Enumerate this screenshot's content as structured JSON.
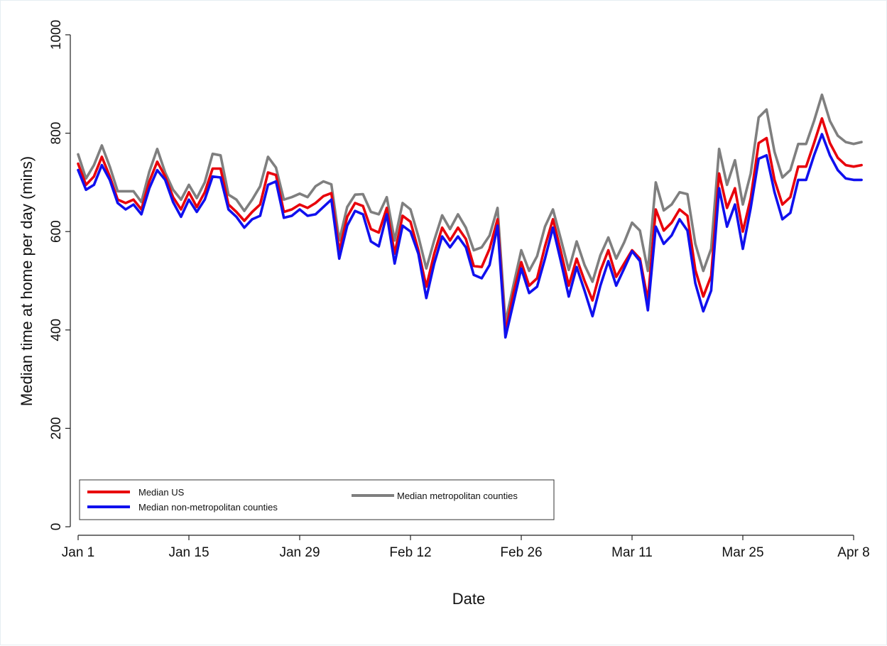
{
  "chart_data": {
    "type": "line",
    "title": "",
    "xlabel": "Date",
    "ylabel": "Median time at home per day (mins)",
    "x_start": "Jan 1",
    "x_ticks": [
      {
        "label": "Jan 1",
        "day": 0
      },
      {
        "label": "Jan 15",
        "day": 14
      },
      {
        "label": "Jan 29",
        "day": 28
      },
      {
        "label": "Feb 12",
        "day": 42
      },
      {
        "label": "Feb 26",
        "day": 56
      },
      {
        "label": "Mar 11",
        "day": 70
      },
      {
        "label": "Mar 25",
        "day": 84
      },
      {
        "label": "Apr 8",
        "day": 98
      }
    ],
    "y_ticks": [
      0,
      200,
      400,
      600,
      800,
      1000
    ],
    "ylim": [
      0,
      1000
    ],
    "xlim_days": [
      0,
      98
    ],
    "grid": false,
    "legend_position": "bottom-left",
    "series": [
      {
        "name": "Median US",
        "color": "#e8000b",
        "values": [
          738,
          695,
          712,
          752,
          712,
          665,
          658,
          665,
          645,
          702,
          742,
          712,
          670,
          645,
          680,
          650,
          680,
          728,
          728,
          655,
          640,
          622,
          640,
          655,
          720,
          715,
          640,
          645,
          655,
          648,
          658,
          672,
          678,
          560,
          630,
          658,
          652,
          605,
          598,
          648,
          555,
          632,
          620,
          562,
          488,
          555,
          608,
          582,
          608,
          585,
          530,
          528,
          565,
          625,
          395,
          475,
          538,
          490,
          505,
          570,
          625,
          560,
          490,
          545,
          500,
          460,
          520,
          562,
          508,
          535,
          562,
          545,
          460,
          645,
          602,
          618,
          645,
          632,
          522,
          468,
          510,
          718,
          648,
          688,
          600,
          668,
          780,
          790,
          705,
          655,
          670,
          732,
          732,
          780,
          830,
          780,
          750,
          735,
          732,
          735
        ]
      },
      {
        "name": "Median non-metropolitan counties",
        "color": "#1010ee",
        "values": [
          725,
          685,
          695,
          735,
          705,
          658,
          645,
          655,
          635,
          688,
          725,
          705,
          660,
          630,
          665,
          640,
          665,
          712,
          710,
          645,
          630,
          608,
          625,
          632,
          695,
          702,
          628,
          632,
          645,
          632,
          635,
          650,
          665,
          545,
          612,
          642,
          635,
          580,
          570,
          635,
          535,
          612,
          600,
          555,
          465,
          535,
          590,
          568,
          590,
          568,
          512,
          505,
          532,
          612,
          385,
          455,
          525,
          475,
          488,
          545,
          608,
          540,
          468,
          528,
          480,
          428,
          490,
          540,
          490,
          525,
          560,
          540,
          440,
          610,
          575,
          592,
          625,
          602,
          495,
          438,
          480,
          688,
          610,
          655,
          565,
          648,
          748,
          755,
          680,
          625,
          638,
          705,
          705,
          755,
          798,
          755,
          725,
          708,
          705,
          705
        ]
      },
      {
        "name": "Median metropolitan counties",
        "color": "#7f7f7f",
        "values": [
          757,
          708,
          735,
          775,
          732,
          682,
          682,
          682,
          660,
          722,
          768,
          720,
          685,
          665,
          695,
          668,
          700,
          758,
          755,
          675,
          665,
          642,
          665,
          692,
          752,
          730,
          665,
          670,
          677,
          670,
          692,
          702,
          696,
          582,
          650,
          675,
          676,
          640,
          635,
          670,
          582,
          658,
          645,
          590,
          525,
          582,
          633,
          605,
          635,
          608,
          562,
          568,
          592,
          648,
          415,
          490,
          562,
          520,
          550,
          610,
          645,
          585,
          522,
          580,
          532,
          498,
          552,
          588,
          545,
          578,
          618,
          602,
          520,
          700,
          643,
          655,
          680,
          676,
          575,
          520,
          565,
          768,
          695,
          745,
          655,
          718,
          832,
          848,
          762,
          710,
          725,
          778,
          778,
          825,
          878,
          825,
          795,
          782,
          778,
          782
        ]
      }
    ]
  }
}
